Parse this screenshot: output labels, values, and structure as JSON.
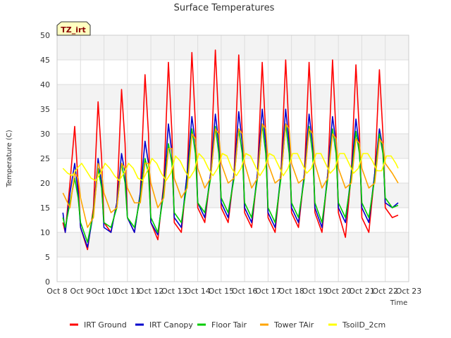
{
  "chart_data": {
    "type": "line",
    "title": "Surface Temperatures",
    "xlabel": "Time",
    "ylabel": "Temperature (C)",
    "badge": "TZ_irt",
    "ylim": [
      0,
      50
    ],
    "yticks": [
      0,
      5,
      10,
      15,
      20,
      25,
      30,
      35,
      40,
      45,
      50
    ],
    "xlim": [
      8,
      23
    ],
    "xticks": [
      {
        "value": 8,
        "label": "Oct 8"
      },
      {
        "value": 9,
        "label": "Oct 9"
      },
      {
        "value": 10,
        "label": "Oct 10"
      },
      {
        "value": 11,
        "label": "Oct 11"
      },
      {
        "value": 12,
        "label": "Oct 12"
      },
      {
        "value": 13,
        "label": "Oct 13"
      },
      {
        "value": 14,
        "label": "Oct 14"
      },
      {
        "value": 15,
        "label": "Oct 15"
      },
      {
        "value": 16,
        "label": "Oct 16"
      },
      {
        "value": 17,
        "label": "Oct 17"
      },
      {
        "value": 18,
        "label": "Oct 18"
      },
      {
        "value": 19,
        "label": "Oct 19"
      },
      {
        "value": 20,
        "label": "Oct 20"
      },
      {
        "value": 21,
        "label": "Oct 21"
      },
      {
        "value": 22,
        "label": "Oct 22"
      },
      {
        "value": 23,
        "label": "Oct 23"
      }
    ],
    "grid": true,
    "legend_position": "bottom",
    "series": [
      {
        "name": "IRT Ground",
        "color": "#ff0000",
        "x": [
          8.25,
          8.35,
          8.55,
          8.75,
          8.9,
          9.0,
          9.3,
          9.55,
          9.75,
          9.9,
          10.0,
          10.3,
          10.55,
          10.75,
          10.9,
          11.0,
          11.3,
          11.55,
          11.75,
          11.9,
          12.0,
          12.3,
          12.55,
          12.75,
          12.9,
          13.0,
          13.3,
          13.55,
          13.75,
          13.9,
          14.0,
          14.3,
          14.55,
          14.75,
          14.9,
          15.0,
          15.3,
          15.55,
          15.75,
          15.9,
          16.0,
          16.3,
          16.55,
          16.75,
          16.9,
          17.0,
          17.3,
          17.55,
          17.75,
          17.9,
          18.0,
          18.3,
          18.55,
          18.75,
          18.9,
          19.0,
          19.3,
          19.55,
          19.75,
          19.9,
          20.0,
          20.3,
          20.55,
          20.75,
          20.9,
          21.0,
          21.3,
          21.55,
          21.75,
          21.9,
          22.0,
          22.3,
          22.55
        ],
        "y": [
          12,
          10,
          20,
          31.5,
          20,
          11,
          6.5,
          15,
          36.5,
          25,
          12,
          10,
          16,
          39,
          28,
          13,
          10,
          18,
          42,
          30,
          12,
          8.5,
          20,
          44.5,
          30,
          12,
          10,
          22,
          46.5,
          32,
          15,
          12,
          22,
          47,
          32,
          15,
          12,
          22,
          46,
          30,
          14,
          11,
          22,
          44.5,
          30,
          13,
          10,
          22,
          45,
          30,
          14,
          11,
          22,
          44.5,
          30,
          14,
          10,
          22,
          45,
          30,
          14,
          9,
          22,
          44,
          30,
          13,
          10,
          22,
          43,
          30,
          15,
          13,
          13.5
        ]
      },
      {
        "name": "IRT Canopy",
        "color": "#0000cc",
        "x": [
          8.25,
          8.35,
          8.55,
          8.75,
          8.9,
          9.0,
          9.3,
          9.55,
          9.75,
          9.9,
          10.0,
          10.3,
          10.55,
          10.75,
          10.9,
          11.0,
          11.3,
          11.55,
          11.75,
          11.9,
          12.0,
          12.3,
          12.55,
          12.75,
          12.9,
          13.0,
          13.3,
          13.55,
          13.75,
          13.9,
          14.0,
          14.3,
          14.55,
          14.75,
          14.9,
          15.0,
          15.3,
          15.55,
          15.75,
          15.9,
          16.0,
          16.3,
          16.55,
          16.75,
          16.9,
          17.0,
          17.3,
          17.55,
          17.75,
          17.9,
          18.0,
          18.3,
          18.55,
          18.75,
          18.9,
          19.0,
          19.3,
          19.55,
          19.75,
          19.9,
          20.0,
          20.3,
          20.55,
          20.75,
          20.9,
          21.0,
          21.3,
          21.55,
          21.75,
          21.9,
          22.0,
          22.3,
          22.55
        ],
        "y": [
          14,
          10,
          18,
          24,
          18,
          11,
          7,
          14,
          25,
          20,
          11,
          10,
          16,
          26,
          22,
          13,
          10,
          18,
          28.5,
          24,
          12,
          9.5,
          19,
          32,
          26,
          13,
          11,
          22,
          33.5,
          28,
          16,
          13,
          22,
          34,
          28,
          16,
          13,
          22,
          34.5,
          28,
          15,
          12,
          22,
          35,
          28,
          14,
          11,
          22,
          35,
          28,
          15,
          12,
          22,
          34,
          28,
          15,
          11,
          22,
          33.5,
          28,
          15,
          12,
          22,
          33,
          27,
          15,
          12,
          22,
          31,
          27,
          16,
          15,
          16
        ]
      },
      {
        "name": "Floor Tair",
        "color": "#00cc00",
        "x": [
          8.25,
          8.35,
          8.55,
          8.75,
          8.9,
          9.0,
          9.3,
          9.55,
          9.75,
          9.9,
          10.0,
          10.3,
          10.55,
          10.75,
          10.9,
          11.0,
          11.3,
          11.55,
          11.75,
          11.9,
          12.0,
          12.3,
          12.55,
          12.75,
          12.9,
          13.0,
          13.3,
          13.55,
          13.75,
          13.9,
          14.0,
          14.3,
          14.55,
          14.75,
          14.9,
          15.0,
          15.3,
          15.55,
          15.75,
          15.9,
          16.0,
          16.3,
          16.55,
          16.75,
          16.9,
          17.0,
          17.3,
          17.55,
          17.75,
          17.9,
          18.0,
          18.3,
          18.55,
          18.75,
          18.9,
          19.0,
          19.3,
          19.55,
          19.75,
          19.9,
          20.0,
          20.3,
          20.55,
          20.75,
          20.9,
          21.0,
          21.3,
          21.55,
          21.75,
          21.9,
          22.0,
          22.3,
          22.55
        ],
        "y": [
          13,
          11,
          16,
          21,
          17,
          12,
          8,
          14,
          23,
          19,
          12,
          11,
          15,
          24,
          20,
          13,
          11,
          17,
          25,
          22,
          13,
          10,
          18,
          28,
          24,
          14,
          12,
          20,
          31,
          26,
          16,
          14,
          21,
          31.5,
          26,
          17,
          14,
          21,
          31,
          26,
          16,
          13,
          21,
          32,
          26,
          15,
          12,
          21,
          32,
          26,
          16,
          13,
          21,
          31.5,
          26,
          16,
          12,
          21,
          31,
          26,
          16,
          13,
          21,
          30.5,
          26,
          16,
          13,
          21,
          30,
          26,
          17,
          15,
          15.5
        ]
      },
      {
        "name": "Tower TAir",
        "color": "#ffa500",
        "x": [
          8.25,
          8.35,
          8.55,
          8.75,
          8.9,
          9.0,
          9.3,
          9.55,
          9.75,
          9.9,
          10.0,
          10.3,
          10.55,
          10.75,
          10.9,
          11.0,
          11.3,
          11.55,
          11.75,
          11.9,
          12.0,
          12.3,
          12.55,
          12.75,
          12.9,
          13.0,
          13.3,
          13.55,
          13.75,
          13.9,
          14.0,
          14.3,
          14.55,
          14.75,
          14.9,
          15.0,
          15.3,
          15.55,
          15.75,
          15.9,
          16.0,
          16.3,
          16.55,
          16.75,
          16.9,
          17.0,
          17.3,
          17.55,
          17.75,
          17.9,
          18.0,
          18.3,
          18.55,
          18.75,
          18.9,
          19.0,
          19.3,
          19.55,
          19.75,
          19.9,
          20.0,
          20.3,
          20.55,
          20.75,
          20.9,
          21.0,
          21.3,
          21.55,
          21.75,
          21.9,
          22.0,
          22.3,
          22.55
        ],
        "y": [
          18,
          17,
          15,
          22,
          21,
          17,
          11,
          13,
          24,
          22,
          18,
          14,
          15,
          24,
          23,
          19,
          16,
          16,
          24,
          24,
          20,
          15,
          17,
          27,
          27,
          21,
          17,
          19,
          30,
          29,
          23,
          19,
          21,
          31,
          30,
          24,
          20,
          21,
          31,
          30,
          24,
          19,
          21,
          32,
          31,
          24,
          20,
          21,
          32,
          31,
          24,
          20,
          21,
          31,
          30,
          24,
          19,
          21,
          30,
          29,
          23,
          19,
          20,
          29,
          28,
          23,
          19,
          20,
          29,
          28,
          24,
          22,
          20
        ]
      },
      {
        "name": "TsoilD_2cm",
        "color": "#ffff00",
        "x": [
          8.25,
          8.45,
          8.65,
          8.85,
          9.05,
          9.25,
          9.45,
          9.65,
          9.85,
          10.05,
          10.25,
          10.45,
          10.65,
          10.85,
          11.05,
          11.25,
          11.45,
          11.65,
          11.85,
          12.05,
          12.25,
          12.45,
          12.65,
          12.85,
          13.05,
          13.25,
          13.45,
          13.65,
          13.85,
          14.05,
          14.25,
          14.45,
          14.65,
          14.85,
          15.05,
          15.25,
          15.45,
          15.65,
          15.85,
          16.05,
          16.25,
          16.45,
          16.65,
          16.85,
          17.05,
          17.25,
          17.45,
          17.65,
          17.85,
          18.05,
          18.25,
          18.45,
          18.65,
          18.85,
          19.05,
          19.25,
          19.45,
          19.65,
          19.85,
          20.05,
          20.25,
          20.45,
          20.65,
          20.85,
          21.05,
          21.25,
          21.45,
          21.65,
          21.85,
          22.05,
          22.25,
          22.45,
          22.55
        ],
        "y": [
          23,
          22,
          21.5,
          23,
          24,
          22.5,
          21,
          20.5,
          22,
          24,
          23,
          21.5,
          20.5,
          22,
          24,
          23,
          21,
          20.5,
          22.5,
          25,
          24,
          22,
          20.5,
          22,
          25.5,
          24.5,
          22.5,
          21,
          22.5,
          26,
          25,
          23,
          21.5,
          23,
          26,
          25.5,
          23,
          21.5,
          23,
          26,
          25.5,
          23.5,
          21.5,
          23,
          26,
          25.5,
          23.5,
          21.5,
          23,
          26,
          26,
          24,
          22,
          23,
          26,
          26,
          24,
          22,
          23,
          26,
          26,
          24,
          22,
          23,
          26,
          26,
          24.5,
          22.5,
          22.5,
          25.5,
          25.5,
          24,
          23
        ]
      }
    ]
  }
}
